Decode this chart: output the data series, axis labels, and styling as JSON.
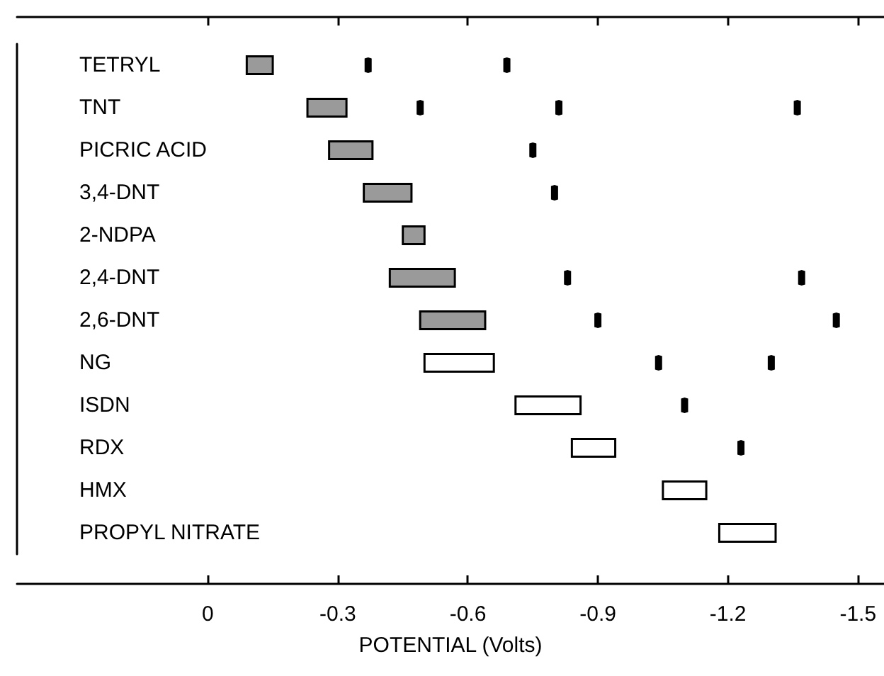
{
  "chart_data": {
    "type": "bar",
    "orientation": "horizontal",
    "xlabel": "POTENTIAL (Volts)",
    "categories": [
      "TETRYL",
      "TNT",
      "PICRIC ACID",
      "3,4-DNT",
      "2-NDPA",
      "2,4-DNT",
      "2,6-DNT",
      "NG",
      "ISDN",
      "RDX",
      "HMX",
      "PROPYL NITRATE"
    ],
    "xlim": [
      0.44,
      -1.56
    ],
    "xticks": [
      0,
      -0.3,
      -0.6,
      -0.9,
      -1.2,
      -1.5
    ],
    "series": [
      {
        "color": "#9a9a9a",
        "base": [
          -0.09,
          -0.23,
          -0.28,
          -0.36,
          -0.45,
          -0.42,
          -0.49,
          null,
          null,
          null,
          null,
          null
        ],
        "values": [
          -0.06,
          -0.09,
          -0.1,
          -0.11,
          -0.05,
          -0.15,
          -0.15,
          null,
          null,
          null,
          null,
          null
        ]
      },
      {
        "color": "#ffffff",
        "base": [
          null,
          null,
          null,
          null,
          null,
          null,
          null,
          -0.5,
          -0.71,
          -0.84,
          -1.05,
          -1.18
        ],
        "values": [
          null,
          null,
          null,
          null,
          null,
          null,
          null,
          -0.16,
          -0.15,
          -0.1,
          -0.1,
          -0.13
        ]
      },
      {
        "type": "scatter",
        "color": "#000000",
        "x": [
          "TETRYL",
          "TETRYL",
          "TNT",
          "TNT",
          "TNT",
          "PICRIC ACID",
          "3,4-DNT",
          "2,4-DNT",
          "2,4-DNT",
          "2,6-DNT",
          "2,6-DNT",
          "NG",
          "NG",
          "ISDN",
          "RDX"
        ],
        "values": [
          -0.37,
          -0.69,
          -0.49,
          -0.81,
          -1.36,
          -0.75,
          -0.8,
          -0.83,
          -1.37,
          -0.9,
          -1.45,
          -1.04,
          -1.3,
          -1.1,
          -1.23
        ]
      }
    ]
  }
}
